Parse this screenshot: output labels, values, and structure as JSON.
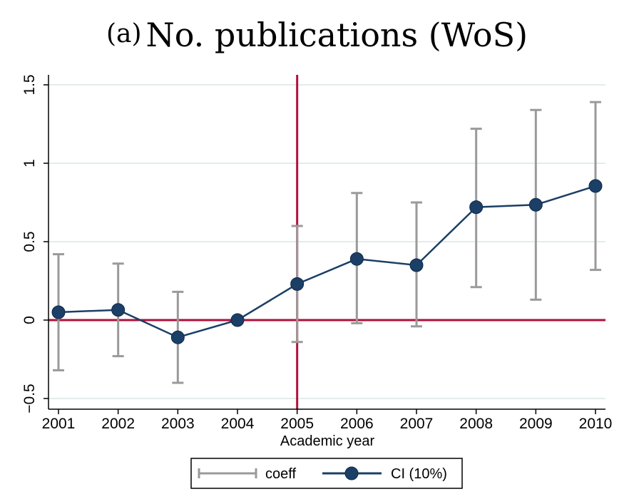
{
  "title": {
    "panel": "(a)",
    "text": "No. publications (WoS)"
  },
  "chart_data": {
    "type": "line",
    "title": "(a) No. publications (WoS)",
    "xlabel": "Academic year",
    "ylabel": "",
    "categories": [
      "2001",
      "2002",
      "2003",
      "2004",
      "2005",
      "2006",
      "2007",
      "2008",
      "2009",
      "2010"
    ],
    "yticks": [
      "−0.5",
      "0",
      "0.5",
      "1",
      "1.5"
    ],
    "ytick_values": [
      -0.5,
      0,
      0.5,
      1,
      1.5
    ],
    "ylim": [
      -0.55,
      1.6
    ],
    "grid": true,
    "reference_lines": {
      "horizontal": 0,
      "vertical_category": "2005",
      "color": "#b0103a"
    },
    "series": [
      {
        "name": "coeff",
        "kind": "errorbar",
        "color": "#9a9a9a",
        "lower": [
          -0.32,
          -0.23,
          -0.4,
          0.0,
          -0.14,
          -0.02,
          -0.04,
          0.21,
          0.13,
          0.32
        ],
        "upper": [
          0.42,
          0.36,
          0.18,
          0.0,
          0.6,
          0.81,
          0.75,
          1.22,
          1.34,
          1.39
        ]
      },
      {
        "name": "CI (10%)",
        "kind": "line-marker",
        "color": "#1b3f66",
        "values": [
          0.05,
          0.065,
          -0.11,
          0.0,
          0.23,
          0.39,
          0.35,
          0.72,
          0.735,
          0.855
        ]
      }
    ],
    "legend": {
      "position": "bottom",
      "items": [
        "coeff",
        "CI (10%)"
      ]
    }
  }
}
